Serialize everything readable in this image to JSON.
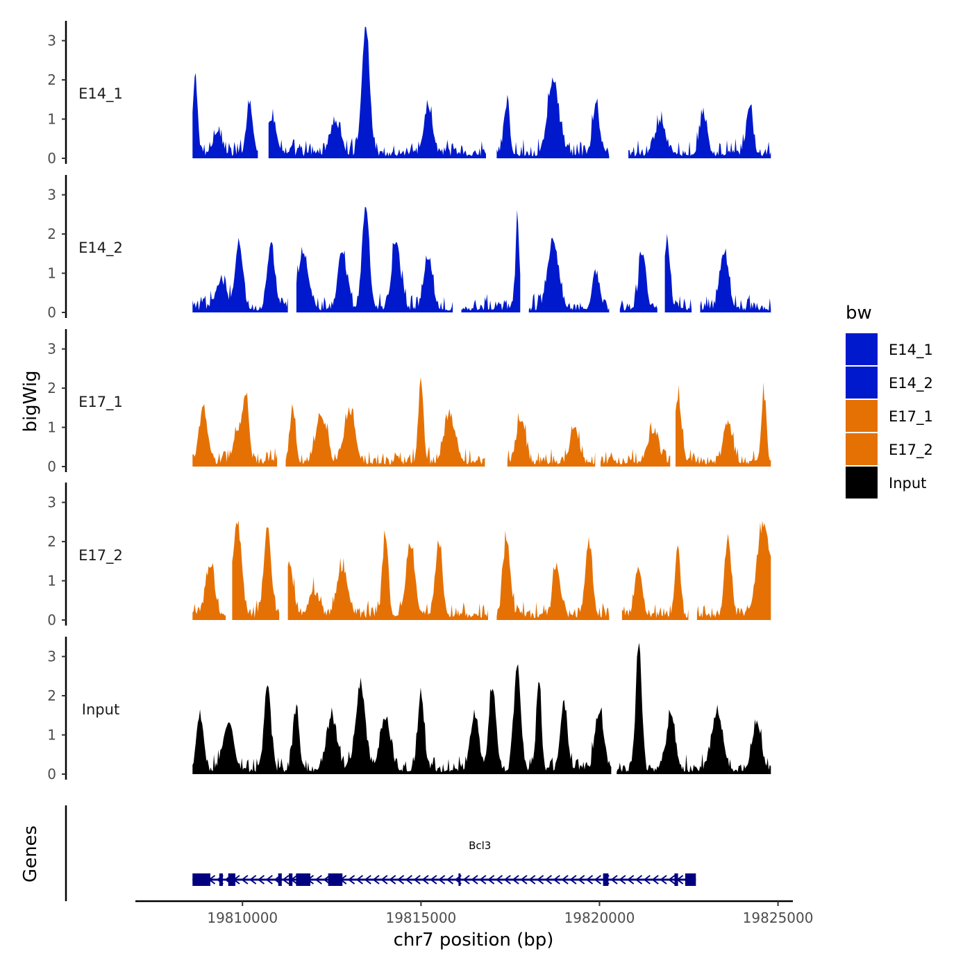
{
  "chart_data": {
    "type": "area",
    "title": "",
    "ylabel": "bigWig",
    "xlabel": "chr7 position (bp)",
    "chromosome": "chr7",
    "xlim": [
      19807000,
      19826000
    ],
    "ylim": [
      0,
      3.4
    ],
    "x_ticks": [
      19810000,
      19815000,
      19820000,
      19825000
    ],
    "x_tick_labels": [
      "19810000",
      "19815000",
      "19820000",
      "19825000"
    ],
    "y_ticks": [
      0,
      1,
      2,
      3
    ],
    "y_tick_labels": [
      "0",
      "1",
      "2",
      "3"
    ],
    "legend": {
      "title": "bw",
      "position": "right",
      "entries": [
        {
          "label": "E14_1",
          "color": "#0019cc"
        },
        {
          "label": "E14_2",
          "color": "#0019cc"
        },
        {
          "label": "E17_1",
          "color": "#e57105"
        },
        {
          "label": "E17_2",
          "color": "#e57105"
        },
        {
          "label": "Input",
          "color": "#000000"
        }
      ]
    },
    "series": [
      {
        "name": "E14_1",
        "color": "#0019cc",
        "x_start": 19808600,
        "x_end": 19824800,
        "peaks": [
          [
            19808680,
            2.0,
            60
          ],
          [
            19809300,
            0.6,
            120
          ],
          [
            19810200,
            1.3,
            90
          ],
          [
            19810800,
            0.9,
            150
          ],
          [
            19812600,
            0.8,
            150
          ],
          [
            19813450,
            3.2,
            110
          ],
          [
            19815200,
            1.2,
            120
          ],
          [
            19817400,
            1.2,
            80
          ],
          [
            19818700,
            1.9,
            150
          ],
          [
            19819900,
            1.3,
            90
          ],
          [
            19821700,
            0.8,
            150
          ],
          [
            19822900,
            1.0,
            100
          ],
          [
            19824200,
            1.2,
            90
          ]
        ],
        "gaps": [
          [
            19810450,
            19810700
          ],
          [
            19816850,
            19817100
          ],
          [
            19820300,
            19820800
          ]
        ]
      },
      {
        "name": "E14_2",
        "color": "#0019cc",
        "x_start": 19808600,
        "x_end": 19824800,
        "peaks": [
          [
            19809400,
            0.7,
            150
          ],
          [
            19809900,
            1.7,
            100
          ],
          [
            19810800,
            1.6,
            100
          ],
          [
            19811700,
            1.4,
            150
          ],
          [
            19812800,
            1.4,
            120
          ],
          [
            19813450,
            2.6,
            100
          ],
          [
            19814300,
            1.7,
            120
          ],
          [
            19815200,
            1.3,
            120
          ],
          [
            19817700,
            2.4,
            50
          ],
          [
            19818700,
            1.7,
            150
          ],
          [
            19819900,
            0.9,
            100
          ],
          [
            19821200,
            1.4,
            100
          ],
          [
            19821900,
            1.7,
            80
          ],
          [
            19823500,
            1.4,
            120
          ]
        ],
        "gaps": [
          [
            19811300,
            19811500
          ],
          [
            19815900,
            19816100
          ],
          [
            19817800,
            19818000
          ],
          [
            19820300,
            19820550
          ],
          [
            19821650,
            19821800
          ],
          [
            19822600,
            19822800
          ]
        ]
      },
      {
        "name": "E17_1",
        "color": "#e57105",
        "x_start": 19808600,
        "x_end": 19824800,
        "peaks": [
          [
            19808900,
            1.3,
            120
          ],
          [
            19809900,
            0.8,
            150
          ],
          [
            19810100,
            1.4,
            80
          ],
          [
            19811400,
            1.3,
            80
          ],
          [
            19812200,
            1.2,
            150
          ],
          [
            19813000,
            1.3,
            150
          ],
          [
            19815000,
            2.1,
            70
          ],
          [
            19815800,
            1.2,
            150
          ],
          [
            19817800,
            1.1,
            120
          ],
          [
            19819300,
            0.9,
            120
          ],
          [
            19821500,
            0.8,
            150
          ],
          [
            19822200,
            1.6,
            100
          ],
          [
            19823600,
            1.0,
            120
          ],
          [
            19824600,
            1.7,
            70
          ]
        ],
        "gaps": [
          [
            19811000,
            19811200
          ],
          [
            19816800,
            19817400
          ],
          [
            19819900,
            19820000
          ],
          [
            19822000,
            19822100
          ]
        ]
      },
      {
        "name": "E17_2",
        "color": "#e57105",
        "x_start": 19808600,
        "x_end": 19824800,
        "peaks": [
          [
            19809100,
            1.3,
            120
          ],
          [
            19809850,
            2.3,
            120
          ],
          [
            19810700,
            2.3,
            100
          ],
          [
            19811300,
            1.3,
            120
          ],
          [
            19812000,
            0.6,
            150
          ],
          [
            19812800,
            1.2,
            150
          ],
          [
            19814000,
            2.0,
            80
          ],
          [
            19814700,
            1.8,
            120
          ],
          [
            19815500,
            1.8,
            100
          ],
          [
            19817400,
            1.9,
            100
          ],
          [
            19818800,
            1.3,
            100
          ],
          [
            19819700,
            1.8,
            100
          ],
          [
            19821100,
            1.2,
            100
          ],
          [
            19822200,
            1.7,
            70
          ],
          [
            19823600,
            2.0,
            90
          ],
          [
            19824600,
            2.3,
            180
          ]
        ],
        "gaps": [
          [
            19809550,
            19809700
          ],
          [
            19811050,
            19811250
          ],
          [
            19816900,
            19817100
          ],
          [
            19820300,
            19820600
          ],
          [
            19822500,
            19822700
          ]
        ]
      },
      {
        "name": "Input",
        "color": "#000000",
        "x_start": 19808600,
        "x_end": 19824800,
        "peaks": [
          [
            19808800,
            1.4,
            90
          ],
          [
            19809600,
            1.2,
            150
          ],
          [
            19810700,
            2.2,
            90
          ],
          [
            19811500,
            1.4,
            90
          ],
          [
            19812500,
            1.3,
            150
          ],
          [
            19813300,
            2.0,
            140
          ],
          [
            19814000,
            1.3,
            150
          ],
          [
            19815000,
            1.9,
            90
          ],
          [
            19816500,
            1.4,
            120
          ],
          [
            19817000,
            2.1,
            100
          ],
          [
            19817700,
            2.7,
            90
          ],
          [
            19818300,
            2.3,
            70
          ],
          [
            19819000,
            1.7,
            100
          ],
          [
            19820000,
            1.5,
            120
          ],
          [
            19821100,
            3.2,
            80
          ],
          [
            19822000,
            1.4,
            120
          ],
          [
            19823300,
            1.5,
            150
          ],
          [
            19824400,
            1.2,
            120
          ]
        ],
        "gaps": [
          [
            19820350,
            19820450
          ]
        ]
      }
    ],
    "genes_panel": {
      "label": "Genes",
      "gene_name": "Bcl3",
      "strand": "-",
      "start": 19808600,
      "end": 19822700,
      "exons": [
        [
          19808600,
          19809100
        ],
        [
          19809350,
          19809450
        ],
        [
          19809600,
          19809800
        ],
        [
          19811000,
          19811100
        ],
        [
          19811300,
          19811400
        ],
        [
          19811500,
          19811900
        ],
        [
          19812400,
          19812800
        ],
        [
          19816050,
          19816100
        ],
        [
          19820100,
          19820250
        ],
        [
          19822100,
          19822200
        ],
        [
          19822400,
          19822700
        ]
      ]
    }
  }
}
